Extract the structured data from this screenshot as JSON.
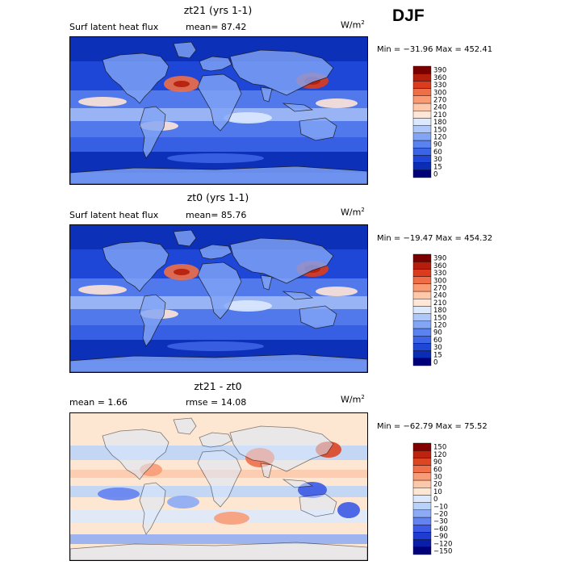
{
  "season": "DJF",
  "chart_data": [
    {
      "type": "heatmap",
      "title": "zt21 (yrs 1-1)",
      "subtitle_left": "Surf latent heat flux",
      "subtitle_mean": "mean=   87.42",
      "units": "W/m",
      "units_sup": "2",
      "minmax": "Min = −31.96  Max = 452.41",
      "colorbar_levels": [
        "0",
        "15",
        "30",
        "60",
        "90",
        "120",
        "150",
        "180",
        "210",
        "240",
        "270",
        "300",
        "330",
        "360",
        "390"
      ],
      "colorbar_colors": [
        "#00007a",
        "#0a2db4",
        "#1e46d7",
        "#3c64e6",
        "#5a82f0",
        "#82a5f5",
        "#afc8fa",
        "#dce9fd",
        "#ffe6d7",
        "#ffc8aa",
        "#fa9b73",
        "#f06e46",
        "#dc3c1e",
        "#b41e0a",
        "#7a0000"
      ],
      "min": -31.96,
      "max": 452.41,
      "mean": 87.42
    },
    {
      "type": "heatmap",
      "title": "zt0 (yrs 1-1)",
      "subtitle_left": "Surf latent heat flux",
      "subtitle_mean": "mean=   85.76",
      "units": "W/m",
      "units_sup": "2",
      "minmax": "Min = −19.47  Max = 454.32",
      "colorbar_levels": [
        "0",
        "15",
        "30",
        "60",
        "90",
        "120",
        "150",
        "180",
        "210",
        "240",
        "270",
        "300",
        "330",
        "360",
        "390"
      ],
      "colorbar_colors": [
        "#00007a",
        "#0a2db4",
        "#1e46d7",
        "#3c64e6",
        "#5a82f0",
        "#82a5f5",
        "#afc8fa",
        "#dce9fd",
        "#ffe6d7",
        "#ffc8aa",
        "#fa9b73",
        "#f06e46",
        "#dc3c1e",
        "#b41e0a",
        "#7a0000"
      ],
      "min": -19.47,
      "max": 454.32,
      "mean": 85.76
    },
    {
      "type": "heatmap",
      "title": "zt21 - zt0",
      "subtitle_left": "mean =    1.66",
      "subtitle_mean": "rmse =   14.08",
      "units": "W/m",
      "units_sup": "2",
      "minmax": "Min = −62.79  Max =  75.52",
      "colorbar_levels": [
        "−150",
        "−120",
        "−90",
        "−60",
        "−30",
        "−20",
        "−10",
        "0",
        "10",
        "20",
        "30",
        "60",
        "90",
        "120",
        "150"
      ],
      "colorbar_colors": [
        "#00007a",
        "#0a1eaa",
        "#1e3cd2",
        "#3c5ae6",
        "#6482f0",
        "#8caaf5",
        "#b9d2fa",
        "#dce9fd",
        "#fde6d2",
        "#fcc8aa",
        "#f89c78",
        "#f0704b",
        "#dc4623",
        "#be230f",
        "#820000"
      ],
      "min": -62.79,
      "max": 75.52,
      "mean": 1.66,
      "rmse": 14.08
    }
  ]
}
